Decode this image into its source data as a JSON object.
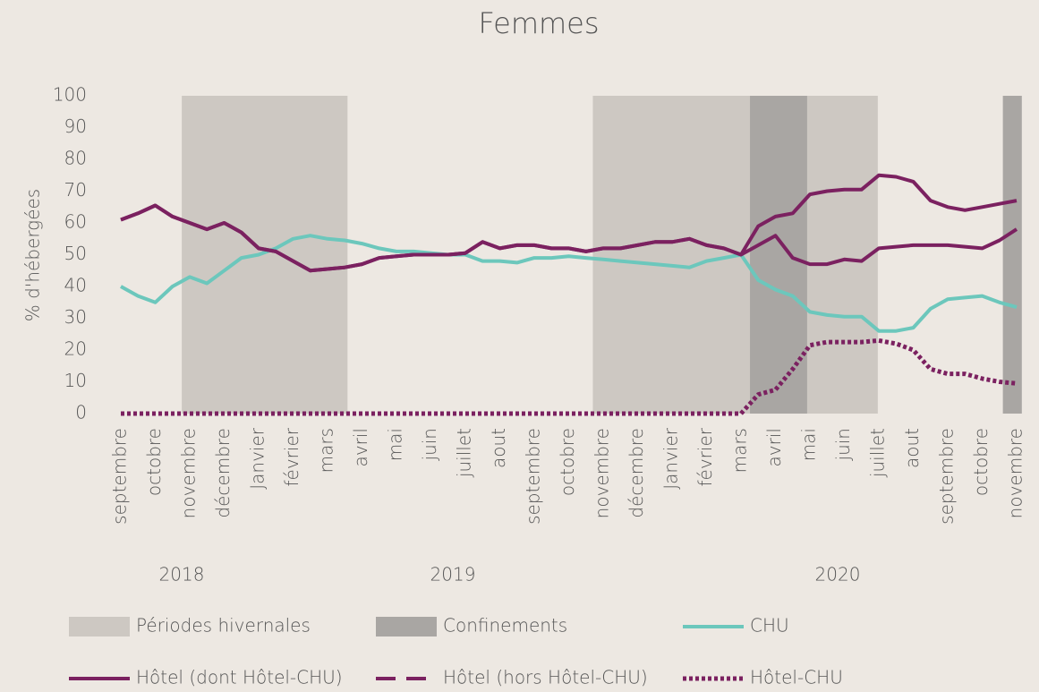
{
  "chart_data": {
    "type": "line",
    "title": "Femmes",
    "y_label": "% d'hébergées",
    "x": [
      0,
      0.5,
      1,
      1.5,
      2,
      2.5,
      3,
      3.5,
      4,
      4.5,
      5,
      5.5,
      6,
      6.5,
      7,
      7.5,
      8,
      8.5,
      9,
      9.5,
      10,
      10.5,
      11,
      11.5,
      12,
      12.5,
      13,
      13.5,
      14,
      14.5,
      15,
      15.5,
      16,
      16.5,
      17,
      17.5,
      18,
      18.5,
      19,
      19.5,
      20,
      20.5,
      21,
      21.5,
      22,
      22.5,
      23,
      23.5,
      24,
      24.5,
      25,
      25.5,
      26
    ],
    "xlim": [
      -0.15,
      26.15
    ],
    "xticks": [
      {
        "value": 0,
        "label": "septembre"
      },
      {
        "value": 1,
        "label": "octobre"
      },
      {
        "value": 2,
        "label": "novembre"
      },
      {
        "value": 3,
        "label": "décembre"
      },
      {
        "value": 4,
        "label": "Janvier"
      },
      {
        "value": 5,
        "label": "février"
      },
      {
        "value": 6,
        "label": "mars"
      },
      {
        "value": 7,
        "label": "avril"
      },
      {
        "value": 8,
        "label": "mai"
      },
      {
        "value": 9,
        "label": "juin"
      },
      {
        "value": 10,
        "label": "juillet"
      },
      {
        "value": 11,
        "label": "aout"
      },
      {
        "value": 12,
        "label": "septembre"
      },
      {
        "value": 13,
        "label": "octobre"
      },
      {
        "value": 14,
        "label": "novembre"
      },
      {
        "value": 15,
        "label": "décembre"
      },
      {
        "value": 16,
        "label": "Janvier"
      },
      {
        "value": 17,
        "label": "février"
      },
      {
        "value": 18,
        "label": "mars"
      },
      {
        "value": 19,
        "label": "avril"
      },
      {
        "value": 20,
        "label": "mai"
      },
      {
        "value": 21,
        "label": "juin"
      },
      {
        "value": 22,
        "label": "juillet"
      },
      {
        "value": 23,
        "label": "aout"
      },
      {
        "value": 24,
        "label": "septembre"
      },
      {
        "value": 25,
        "label": "octobre"
      },
      {
        "value": 26,
        "label": "novembre"
      }
    ],
    "years": [
      "2018",
      "2019",
      "2020"
    ],
    "ylim": [
      0,
      100
    ],
    "yticks": [
      0,
      10,
      20,
      30,
      40,
      50,
      60,
      70,
      80,
      90,
      100
    ],
    "grid": false,
    "regions": [
      {
        "name": "Périodes hivernales",
        "color": "#cdc8c2",
        "spans": [
          [
            1.77,
            6.58
          ],
          [
            13.7,
            18.26
          ],
          [
            19.92,
            21.97
          ]
        ]
      },
      {
        "name": "Confinements",
        "color": "#a9a6a3",
        "spans": [
          [
            18.26,
            19.92
          ],
          [
            25.6,
            26.15
          ]
        ]
      }
    ],
    "series": [
      {
        "name": "CHU",
        "color": "#6cc7bc",
        "style": "solid",
        "values": [
          40,
          37,
          35,
          40,
          43,
          41,
          45,
          49,
          50,
          52,
          55,
          56,
          55,
          54.5,
          53.5,
          52,
          51,
          51,
          50.5,
          50,
          50,
          48,
          48,
          47.5,
          49,
          49,
          49.5,
          49,
          48.5,
          48,
          47.5,
          47,
          46.5,
          46,
          48,
          49,
          50,
          42,
          39,
          37,
          32,
          31,
          30.5,
          30.5,
          26,
          26,
          27,
          33,
          36,
          36.5,
          37,
          35,
          33.5
        ]
      },
      {
        "name": "Hôtel (dont Hôtel-CHU)",
        "color": "#7b2160",
        "style": "solid",
        "values": [
          61,
          63,
          65.5,
          62,
          60,
          58,
          60,
          57,
          52,
          51,
          48,
          45,
          45.5,
          46,
          47,
          49,
          49.5,
          50,
          50,
          50,
          50.5,
          54,
          52,
          53,
          53,
          52,
          52,
          51,
          52,
          52,
          53,
          54,
          54,
          55,
          53,
          52,
          50,
          59,
          62,
          63,
          69,
          70,
          70.5,
          70.5,
          75,
          74.5,
          73,
          67,
          65,
          64,
          65,
          66,
          67
        ]
      },
      {
        "name": "Hôtel (hors Hôtel-CHU)",
        "color": "#7b2160",
        "style": "dashed",
        "values": [
          61,
          63,
          65.5,
          62,
          60,
          58,
          60,
          57,
          52,
          51,
          48,
          45,
          45.5,
          46,
          47,
          49,
          49.5,
          50,
          50,
          50,
          50.5,
          54,
          52,
          53,
          53,
          52,
          52,
          51,
          52,
          52,
          53,
          54,
          54,
          55,
          53,
          52,
          50,
          53,
          56,
          49,
          47,
          47,
          48.5,
          48,
          52,
          52.5,
          53,
          53,
          53,
          52.5,
          52,
          54.5,
          58
        ]
      },
      {
        "name": "Hôtel-CHU",
        "color": "#7b2160",
        "style": "dotted",
        "values": [
          0,
          0,
          0,
          0,
          0,
          0,
          0,
          0,
          0,
          0,
          0,
          0,
          0,
          0,
          0,
          0,
          0,
          0,
          0,
          0,
          0,
          0,
          0,
          0,
          0,
          0,
          0,
          0,
          0,
          0,
          0,
          0,
          0,
          0,
          0,
          0,
          0,
          6,
          7.5,
          14,
          21.5,
          22.5,
          22.5,
          22.5,
          23,
          22,
          20,
          14,
          12.5,
          12.5,
          11,
          10,
          9.5
        ]
      }
    ]
  }
}
